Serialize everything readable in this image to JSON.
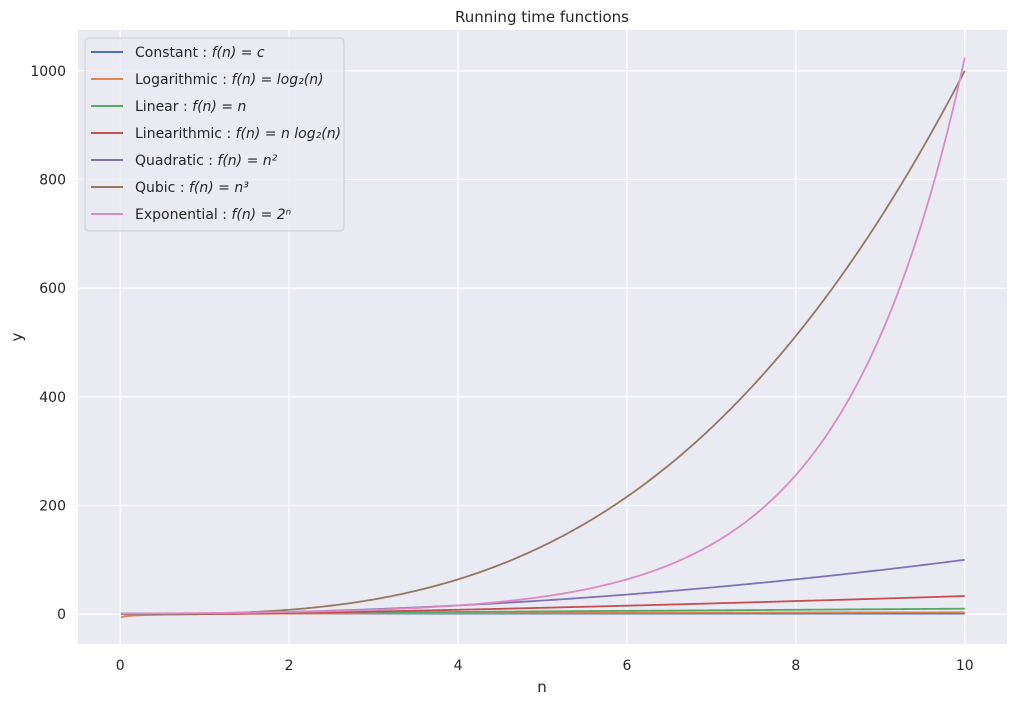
{
  "chart_data": {
    "type": "line",
    "title": "Running time functions",
    "xlabel": "n",
    "ylabel": "y",
    "xlim": [
      -0.5,
      10.5
    ],
    "ylim": [
      -55,
      1075
    ],
    "grid": true,
    "legend_placement": "top-left",
    "x_ticks": [
      0,
      2,
      4,
      6,
      8,
      10
    ],
    "x_tick_labels": [
      "0",
      "2",
      "4",
      "6",
      "8",
      "10"
    ],
    "y_ticks": [
      0,
      200,
      400,
      600,
      800,
      1000
    ],
    "y_tick_labels": [
      "0",
      "200",
      "400",
      "600",
      "800",
      "1000"
    ],
    "background_color": "#eaeaf2",
    "grid_color": "#ffffff",
    "x_domain": [
      0.01,
      10
    ],
    "series": [
      {
        "name": "Constant : f(n) = c",
        "label_prefix": "Constant : ",
        "formula": "f(n) = c",
        "function": "constant",
        "color": "#4c72b0"
      },
      {
        "name": "Logarithmic : f(n) = log₂(n)",
        "label_prefix": "Logarithmic : ",
        "formula": "f(n) = log₂(n)",
        "function": "logarithmic",
        "color": "#dd8452"
      },
      {
        "name": "Linear : f(n) = n",
        "label_prefix": "Linear : ",
        "formula": "f(n) = n",
        "function": "linear",
        "color": "#55a868"
      },
      {
        "name": "Linearithmic : f(n) = n log₂(n)",
        "label_prefix": "Linearithmic : ",
        "formula": "f(n) = n log₂(n)",
        "function": "linearithmic",
        "color": "#c44e52"
      },
      {
        "name": "Quadratic : f(n) = n²",
        "label_prefix": "Quadratic : ",
        "formula": "f(n) = n²",
        "function": "quadratic",
        "color": "#8172b3"
      },
      {
        "name": "Qubic : f(n) = n³",
        "label_prefix": "Qubic : ",
        "formula": "f(n) = n³",
        "function": "cubic",
        "color": "#937860"
      },
      {
        "name": "Exponential : f(n) = 2ⁿ",
        "label_prefix": "Exponential : ",
        "formula": "f(n) = 2ⁿ",
        "function": "exponential",
        "color": "#da8bc3"
      }
    ],
    "sample_points": {
      "x": [
        0,
        2,
        4,
        6,
        8,
        10
      ],
      "Constant": [
        1,
        1,
        1,
        1,
        1,
        1
      ],
      "Logarithmic": [
        -6.6,
        1,
        2,
        2.58,
        3,
        3.32
      ],
      "Linear": [
        0,
        2,
        4,
        6,
        8,
        10
      ],
      "Linearithmic": [
        0,
        2,
        8,
        15.5,
        24,
        33.2
      ],
      "Quadratic": [
        0,
        4,
        16,
        36,
        64,
        100
      ],
      "Qubic": [
        0,
        8,
        64,
        216,
        512,
        1000
      ],
      "Exponential": [
        1,
        4,
        16,
        64,
        256,
        1024
      ]
    }
  }
}
